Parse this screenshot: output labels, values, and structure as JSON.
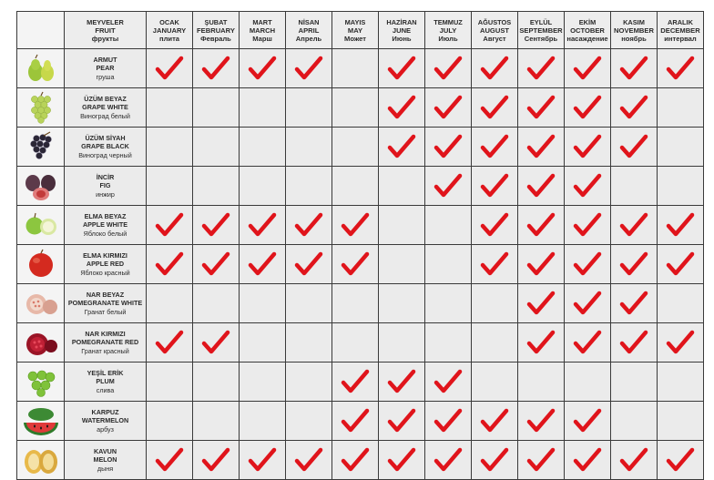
{
  "header": {
    "fruit_label": [
      "MEYVELER",
      "FRUIT",
      "фрукты"
    ],
    "months": [
      [
        "OCAK",
        "JANUARY",
        "плита"
      ],
      [
        "ŞUBAT",
        "FEBRUARY",
        "Февраль"
      ],
      [
        "MART",
        "MARCH",
        "Марш"
      ],
      [
        "NİSAN",
        "APRIL",
        "Апрель"
      ],
      [
        "MAYIS",
        "MAY",
        "Может"
      ],
      [
        "HAZİRAN",
        "JUNE",
        "Июнь"
      ],
      [
        "TEMMUZ",
        "JULY",
        "Июль"
      ],
      [
        "AĞUSTOS",
        "AUGUST",
        "Август"
      ],
      [
        "EYLÜL",
        "SEPTEMBER",
        "Сентябрь"
      ],
      [
        "EKİM",
        "OCTOBER",
        "насаждение"
      ],
      [
        "KASIM",
        "NOVEMBER",
        "ноябрь"
      ],
      [
        "ARALIK",
        "DECEMBER",
        "интервал"
      ]
    ]
  },
  "fruits": [
    {
      "lines": [
        "ARMUT",
        "PEAR",
        "груша"
      ],
      "icon": "pear-icon",
      "months": [
        1,
        1,
        1,
        1,
        0,
        1,
        1,
        1,
        1,
        1,
        1,
        1
      ]
    },
    {
      "lines": [
        "ÜZÜM BEYAZ",
        "GRAPE WHITE",
        "Виноград белый"
      ],
      "icon": "white-grape-icon",
      "months": [
        0,
        0,
        0,
        0,
        0,
        1,
        1,
        1,
        1,
        1,
        1,
        0
      ]
    },
    {
      "lines": [
        "ÜZÜM SİYAH",
        "GRAPE BLACK",
        "Виноград черный"
      ],
      "icon": "black-grape-icon",
      "months": [
        0,
        0,
        0,
        0,
        0,
        1,
        1,
        1,
        1,
        1,
        1,
        0
      ]
    },
    {
      "lines": [
        "İNCİR",
        "FIG",
        "инжир"
      ],
      "icon": "fig-icon",
      "months": [
        0,
        0,
        0,
        0,
        0,
        0,
        1,
        1,
        1,
        1,
        0,
        0
      ]
    },
    {
      "lines": [
        "ELMA BEYAZ",
        "APPLE WHITE",
        "Яблоко белый"
      ],
      "icon": "green-apple-icon",
      "months": [
        1,
        1,
        1,
        1,
        1,
        0,
        0,
        1,
        1,
        1,
        1,
        1
      ]
    },
    {
      "lines": [
        "ELMA KIRMIZI",
        "APPLE RED",
        "Яблоко красный"
      ],
      "icon": "red-apple-icon",
      "months": [
        1,
        1,
        1,
        1,
        1,
        0,
        0,
        1,
        1,
        1,
        1,
        1
      ]
    },
    {
      "lines": [
        "NAR BEYAZ",
        "POMEGRANATE WHITE",
        "Гранат белый"
      ],
      "icon": "white-pomegranate-icon",
      "months": [
        0,
        0,
        0,
        0,
        0,
        0,
        0,
        0,
        1,
        1,
        1,
        0
      ]
    },
    {
      "lines": [
        "NAR KIRMIZI",
        "POMEGRANATE RED",
        "Гранат красный"
      ],
      "icon": "red-pomegranate-icon",
      "months": [
        1,
        1,
        0,
        0,
        0,
        0,
        0,
        0,
        1,
        1,
        1,
        1
      ]
    },
    {
      "lines": [
        "YEŞİL ERİK",
        "PLUM",
        "слива"
      ],
      "icon": "green-plum-icon",
      "months": [
        0,
        0,
        0,
        0,
        1,
        1,
        1,
        0,
        0,
        0,
        0,
        0
      ]
    },
    {
      "lines": [
        "KARPUZ",
        "WATERMELON",
        "арбуз"
      ],
      "icon": "watermelon-icon",
      "months": [
        0,
        0,
        0,
        0,
        1,
        1,
        1,
        1,
        1,
        1,
        0,
        0
      ]
    },
    {
      "lines": [
        "KAVUN",
        "MELON",
        "дыня"
      ],
      "icon": "melon-icon",
      "months": [
        1,
        1,
        1,
        1,
        1,
        1,
        1,
        1,
        1,
        1,
        1,
        1
      ]
    }
  ],
  "colors": {
    "check": "#e0141b",
    "grid_line": "#3a3a3a",
    "cell_bg": "#ebebeb"
  }
}
